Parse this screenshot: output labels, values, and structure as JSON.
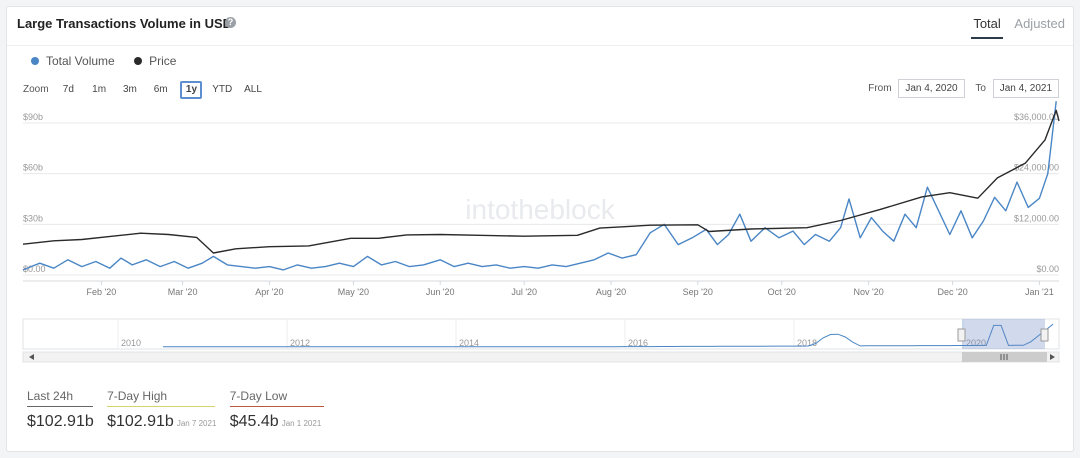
{
  "header": {
    "title": "Large Transactions Volume in USD",
    "help_icon": "question-icon",
    "tabs": [
      {
        "label": "Total",
        "active": true
      },
      {
        "label": "Adjusted",
        "active": false
      }
    ]
  },
  "legend": [
    {
      "label": "Total Volume",
      "color": "#4a86c5"
    },
    {
      "label": "Price",
      "color": "#2a2a2a"
    }
  ],
  "zoom": {
    "label": "Zoom",
    "buttons": [
      {
        "label": "7d",
        "active": false
      },
      {
        "label": "1m",
        "active": false
      },
      {
        "label": "3m",
        "active": false
      },
      {
        "label": "6m",
        "active": false
      },
      {
        "label": "1y",
        "active": true
      },
      {
        "label": "YTD",
        "active": false
      },
      {
        "label": "ALL",
        "active": false
      }
    ]
  },
  "range": {
    "from_label": "From",
    "from_value": "Jan 4, 2020",
    "to_label": "To",
    "to_value": "Jan 4, 2021"
  },
  "watermark": "intotheblock",
  "stats": [
    {
      "label": "Last 24h",
      "value": "$102.91b",
      "date": "",
      "color": "#666666"
    },
    {
      "label": "7-Day High",
      "value": "$102.91b",
      "date": "Jan 7 2021",
      "color": "#d5d36a"
    },
    {
      "label": "7-Day Low",
      "value": "$45.4b",
      "date": "Jan 1 2021",
      "color": "#b85a40"
    }
  ],
  "chart_data": {
    "type": "line",
    "x_range": [
      "2020-01-04",
      "2021-01-08"
    ],
    "x_ticks": [
      "Feb '20",
      "Mar '20",
      "Apr '20",
      "May '20",
      "Jun '20",
      "Jul '20",
      "Aug '20",
      "Sep '20",
      "Oct '20",
      "Nov '20",
      "Dec '20",
      "Jan '21"
    ],
    "y_left": {
      "ticks": [
        "$0.00",
        "$30b",
        "$60b",
        "$90b"
      ],
      "range": [
        0,
        90
      ]
    },
    "y_right": {
      "ticks": [
        "$0.00",
        "$12,000.00",
        "$24,000.00",
        "$36,000.00"
      ],
      "range": [
        0,
        36000
      ]
    },
    "grid": true,
    "series": [
      {
        "name": "Total Volume",
        "axis": "left",
        "color": "#4a86c5",
        "points": [
          [
            "2020-01-04",
            3
          ],
          [
            "2020-01-10",
            7
          ],
          [
            "2020-01-15",
            4
          ],
          [
            "2020-01-20",
            9
          ],
          [
            "2020-01-25",
            5
          ],
          [
            "2020-01-30",
            8
          ],
          [
            "2020-02-04",
            4
          ],
          [
            "2020-02-08",
            10
          ],
          [
            "2020-02-12",
            6
          ],
          [
            "2020-02-17",
            9
          ],
          [
            "2020-02-22",
            5
          ],
          [
            "2020-02-27",
            8
          ],
          [
            "2020-03-03",
            4
          ],
          [
            "2020-03-08",
            7
          ],
          [
            "2020-03-12",
            11
          ],
          [
            "2020-03-17",
            6
          ],
          [
            "2020-03-22",
            5
          ],
          [
            "2020-03-27",
            4
          ],
          [
            "2020-04-01",
            5
          ],
          [
            "2020-04-06",
            3
          ],
          [
            "2020-04-11",
            6
          ],
          [
            "2020-04-16",
            4
          ],
          [
            "2020-04-21",
            5
          ],
          [
            "2020-04-26",
            7
          ],
          [
            "2020-05-01",
            5
          ],
          [
            "2020-05-06",
            11
          ],
          [
            "2020-05-11",
            6
          ],
          [
            "2020-05-16",
            8
          ],
          [
            "2020-05-21",
            5
          ],
          [
            "2020-05-26",
            6
          ],
          [
            "2020-06-01",
            9
          ],
          [
            "2020-06-06",
            5
          ],
          [
            "2020-06-11",
            7
          ],
          [
            "2020-06-16",
            5
          ],
          [
            "2020-06-21",
            6
          ],
          [
            "2020-06-26",
            4
          ],
          [
            "2020-07-01",
            5
          ],
          [
            "2020-07-06",
            4
          ],
          [
            "2020-07-11",
            6
          ],
          [
            "2020-07-16",
            5
          ],
          [
            "2020-07-21",
            7
          ],
          [
            "2020-07-26",
            9
          ],
          [
            "2020-07-31",
            13
          ],
          [
            "2020-08-05",
            10
          ],
          [
            "2020-08-10",
            12
          ],
          [
            "2020-08-15",
            25
          ],
          [
            "2020-08-20",
            30
          ],
          [
            "2020-08-25",
            18
          ],
          [
            "2020-08-30",
            22
          ],
          [
            "2020-09-04",
            27
          ],
          [
            "2020-09-08",
            18
          ],
          [
            "2020-09-12",
            24
          ],
          [
            "2020-09-16",
            36
          ],
          [
            "2020-09-20",
            20
          ],
          [
            "2020-09-25",
            28
          ],
          [
            "2020-09-30",
            22
          ],
          [
            "2020-10-05",
            26
          ],
          [
            "2020-10-09",
            18
          ],
          [
            "2020-10-13",
            24
          ],
          [
            "2020-10-18",
            20
          ],
          [
            "2020-10-22",
            28
          ],
          [
            "2020-10-25",
            45
          ],
          [
            "2020-10-29",
            22
          ],
          [
            "2020-11-02",
            34
          ],
          [
            "2020-11-06",
            26
          ],
          [
            "2020-11-10",
            20
          ],
          [
            "2020-11-14",
            36
          ],
          [
            "2020-11-18",
            28
          ],
          [
            "2020-11-22",
            52
          ],
          [
            "2020-11-26",
            38
          ],
          [
            "2020-11-30",
            24
          ],
          [
            "2020-12-04",
            38
          ],
          [
            "2020-12-08",
            22
          ],
          [
            "2020-12-12",
            32
          ],
          [
            "2020-12-16",
            46
          ],
          [
            "2020-12-20",
            38
          ],
          [
            "2020-12-24",
            55
          ],
          [
            "2020-12-28",
            40
          ],
          [
            "2021-01-01",
            45.4
          ],
          [
            "2021-01-04",
            60
          ],
          [
            "2021-01-07",
            102.91
          ]
        ]
      },
      {
        "name": "Price",
        "axis": "right",
        "color": "#2a2a2a",
        "points": [
          [
            "2020-01-04",
            7300
          ],
          [
            "2020-01-15",
            8100
          ],
          [
            "2020-01-25",
            8400
          ],
          [
            "2020-02-05",
            9200
          ],
          [
            "2020-02-15",
            9900
          ],
          [
            "2020-02-25",
            9600
          ],
          [
            "2020-03-06",
            8900
          ],
          [
            "2020-03-12",
            5200
          ],
          [
            "2020-03-20",
            6200
          ],
          [
            "2020-04-01",
            6700
          ],
          [
            "2020-04-15",
            6900
          ],
          [
            "2020-04-30",
            8700
          ],
          [
            "2020-05-10",
            8700
          ],
          [
            "2020-05-20",
            9500
          ],
          [
            "2020-06-01",
            9600
          ],
          [
            "2020-06-15",
            9400
          ],
          [
            "2020-07-01",
            9200
          ],
          [
            "2020-07-20",
            9400
          ],
          [
            "2020-07-28",
            11100
          ],
          [
            "2020-08-15",
            11800
          ],
          [
            "2020-09-01",
            11900
          ],
          [
            "2020-09-05",
            10300
          ],
          [
            "2020-09-20",
            10900
          ],
          [
            "2020-10-10",
            11200
          ],
          [
            "2020-10-22",
            12900
          ],
          [
            "2020-11-05",
            15500
          ],
          [
            "2020-11-20",
            18500
          ],
          [
            "2020-11-30",
            19500
          ],
          [
            "2020-12-10",
            18200
          ],
          [
            "2020-12-17",
            23000
          ],
          [
            "2020-12-27",
            26500
          ],
          [
            "2021-01-03",
            32000
          ],
          [
            "2021-01-07",
            39000
          ],
          [
            "2021-01-08",
            36500
          ]
        ]
      }
    ],
    "navigator": {
      "x_ticks": [
        "2010",
        "2012",
        "2014",
        "2016",
        "2018",
        "2020"
      ]
    }
  }
}
